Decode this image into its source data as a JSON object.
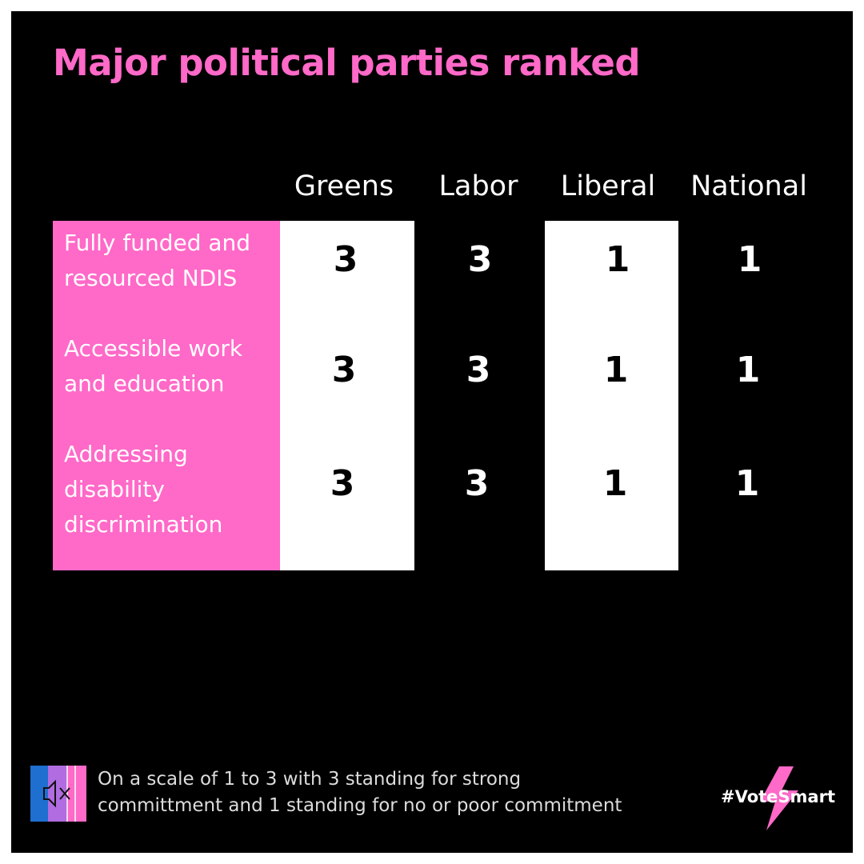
{
  "title": "Major political parties ranked",
  "parties": [
    "Greens",
    "Labor",
    "Liberal",
    "National"
  ],
  "rows": [
    {
      "label_lines": [
        "Fully funded and",
        "resourced NDIS"
      ],
      "scores": [
        3,
        3,
        1,
        1
      ]
    },
    {
      "label_lines": [
        "Accessible work",
        "and education"
      ],
      "scores": [
        3,
        3,
        1,
        1
      ]
    },
    {
      "label_lines": [
        "Addressing",
        "disability",
        "discrimination"
      ],
      "scores": [
        3,
        3,
        1,
        1
      ]
    }
  ],
  "legend": {
    "lines": [
      "On a scale of 1 to 3 with 3 standing for strong",
      "committment and 1 standing for no or poor commitment"
    ],
    "icon": "muted-speaker-icon"
  },
  "hashtag": "#VoteSmart",
  "colors": {
    "background": "#000000",
    "accent_pink": "#ff69c8",
    "text_white": "#ffffff",
    "icon_blue": "#1e6fd0",
    "icon_purple": "#b06ce0",
    "icon_pink": "#ff69c8"
  }
}
